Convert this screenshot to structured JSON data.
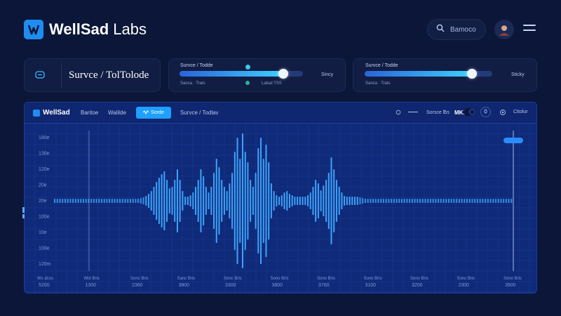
{
  "app": {
    "name_bold": "WellSad",
    "name_rest": " Labs"
  },
  "header": {
    "search_text": "Bamoco"
  },
  "cards": {
    "title": "Survce / TolTolode",
    "slider1": {
      "label_top": "Survce / Todde",
      "label_bottom_left": "Sanca · Trats",
      "label_bottom_right": "Lalsal TSS",
      "side_label": "Sincy",
      "value": 0.84,
      "accent": "#3fd0ff"
    },
    "slider2": {
      "label_top": "Survce / Todde",
      "label_bottom_left": "Sanca · Trats",
      "side_label": "Sticky",
      "value": 0.84,
      "accent": "#3fd0ff"
    }
  },
  "panel": {
    "brand": "WellSad",
    "tabs": [
      "Baritoe",
      "Walilde"
    ],
    "active_tab": "Sorde",
    "breadcrumb": "Survce / Todlav",
    "right_text": "Sorsce ℔s",
    "mode_label": "MKX",
    "settings_label": "Cttolur"
  },
  "chart_data": {
    "type": "bar",
    "yticks": [
      "180e",
      "130e",
      "120e",
      "20e",
      "20e",
      "100e",
      "10e",
      "100e",
      "120m"
    ],
    "xticks_top": [
      "Ws dcos",
      "Wid Bris",
      "Sonc Bris",
      "Sanc Bris",
      "Sonc Bris",
      "Sono Bris",
      "Sono Bris",
      "Sono Bris",
      "Sono Bris",
      "Sonc Bris",
      "Sono Bris"
    ],
    "xticks_bottom": [
      "5200",
      "1300",
      "2360",
      "3800",
      "3300",
      "3800",
      "3760",
      "3100",
      "3200",
      "2300",
      "3900"
    ],
    "amplitudes": [
      0.03,
      0.03,
      0.03,
      0.03,
      0.03,
      0.03,
      0.03,
      0.03,
      0.03,
      0.03,
      0.03,
      0.03,
      0.03,
      0.03,
      0.03,
      0.03,
      0.03,
      0.03,
      0.03,
      0.03,
      0.03,
      0.03,
      0.03,
      0.03,
      0.03,
      0.03,
      0.03,
      0.03,
      0.03,
      0.03,
      0.03,
      0.03,
      0.03,
      0.04,
      0.05,
      0.07,
      0.1,
      0.14,
      0.2,
      0.27,
      0.33,
      0.38,
      0.42,
      0.3,
      0.18,
      0.2,
      0.3,
      0.45,
      0.3,
      0.14,
      0.06,
      0.06,
      0.08,
      0.12,
      0.2,
      0.3,
      0.45,
      0.35,
      0.2,
      0.12,
      0.2,
      0.4,
      0.6,
      0.48,
      0.3,
      0.2,
      0.14,
      0.25,
      0.4,
      0.7,
      0.9,
      0.6,
      0.96,
      0.7,
      0.55,
      0.3,
      0.2,
      0.4,
      0.75,
      0.9,
      0.6,
      0.8,
      0.55,
      0.25,
      0.14,
      0.08,
      0.06,
      0.08,
      0.12,
      0.14,
      0.1,
      0.08,
      0.06,
      0.06,
      0.06,
      0.06,
      0.06,
      0.08,
      0.12,
      0.2,
      0.3,
      0.25,
      0.15,
      0.22,
      0.3,
      0.4,
      0.62,
      0.45,
      0.3,
      0.2,
      0.12,
      0.07,
      0.06,
      0.06,
      0.06,
      0.06,
      0.06,
      0.05,
      0.04,
      0.03,
      0.03,
      0.03,
      0.03,
      0.03,
      0.03,
      0.03,
      0.03,
      0.03,
      0.03,
      0.03,
      0.03,
      0.03,
      0.03,
      0.03,
      0.03,
      0.03,
      0.03,
      0.03,
      0.03,
      0.03,
      0.03,
      0.03,
      0.03,
      0.03,
      0.03,
      0.03,
      0.03,
      0.03,
      0.03,
      0.03,
      0.03,
      0.03,
      0.03,
      0.03,
      0.03,
      0.03,
      0.03,
      0.03,
      0.03,
      0.03,
      0.03,
      0.03,
      0.03,
      0.03,
      0.03,
      0.03,
      0.03,
      0.03,
      0.03,
      0.03,
      0.03,
      0.03,
      0.03,
      0.03,
      0.03,
      0.03
    ],
    "color": "#3fa8ff",
    "grid": true
  }
}
